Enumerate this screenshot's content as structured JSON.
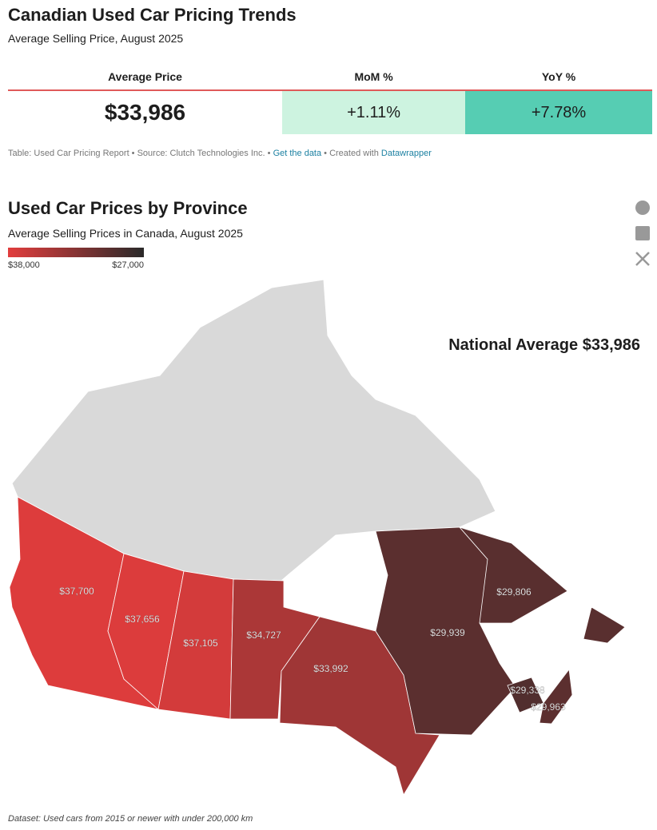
{
  "table_section": {
    "title": "Canadian Used Car Pricing Trends",
    "subtitle": "Average Selling Price, August 2025",
    "columns": [
      "Average Price",
      "MoM %",
      "YoY %"
    ],
    "row": [
      "$33,986",
      "+1.11%",
      "+7.78%"
    ],
    "source": {
      "prefix": "Table: Used Car Pricing Report • Source: Clutch Technologies Inc. •",
      "link": "Get the data",
      "middle": "• Created with",
      "credit": "Datawrapper"
    }
  },
  "chart_data": {
    "type": "choropleth",
    "title": "Used Car Prices by Province",
    "subtitle": "Average Selling Prices in Canada, August 2025",
    "annotation": "National Average $33,986",
    "values": [
      37700,
      37656,
      37105,
      34727,
      33992,
      29939,
      29806,
      29338,
      29963
    ],
    "value_labels": [
      "$37,700",
      "$37,656",
      "$37,105",
      "$34,727",
      "$33,992",
      "$29,939",
      "$29,806",
      "$29,338",
      "$29,963"
    ],
    "colorticks": [
      {
        "value": 38000,
        "label": "$38,000"
      },
      {
        "value": 27000,
        "label": "$27,000"
      }
    ],
    "colors": [
      "#e23d3d",
      "#2a2a2a"
    ],
    "footnote": "Dataset: Used cars from 2015 or newer with under 200,000 km"
  }
}
